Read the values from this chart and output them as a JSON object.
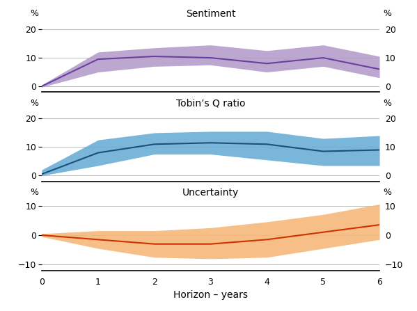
{
  "x": [
    0,
    1,
    2,
    3,
    4,
    5,
    6
  ],
  "sentiment_center": [
    0.0,
    9.5,
    10.5,
    10.0,
    8.0,
    10.0,
    6.0
  ],
  "sentiment_upper": [
    0.5,
    12.0,
    13.5,
    14.5,
    12.5,
    14.5,
    10.5
  ],
  "sentiment_lower": [
    -0.3,
    5.0,
    7.0,
    7.5,
    5.0,
    7.0,
    3.0
  ],
  "tobinq_center": [
    0.5,
    8.0,
    11.0,
    11.5,
    11.0,
    8.5,
    9.0
  ],
  "tobinq_upper": [
    2.0,
    12.5,
    15.0,
    15.5,
    15.5,
    13.0,
    14.0
  ],
  "tobinq_lower": [
    0.0,
    3.5,
    7.5,
    7.5,
    5.5,
    3.5,
    3.5
  ],
  "uncertainty_center": [
    0.0,
    -1.5,
    -3.0,
    -3.0,
    -1.5,
    1.0,
    3.5
  ],
  "uncertainty_upper": [
    0.5,
    1.5,
    1.5,
    2.5,
    4.5,
    7.0,
    10.5
  ],
  "uncertainty_lower": [
    -0.5,
    -4.5,
    -7.5,
    -8.0,
    -7.5,
    -4.5,
    -1.5
  ],
  "sentiment_color_line": "#6b3fa0",
  "sentiment_color_fill": "#b49eca",
  "tobinq_color_line": "#1e4f7a",
  "tobinq_color_fill": "#6aaed6",
  "uncertainty_color_line": "#cc3300",
  "uncertainty_color_fill": "#f5b87a",
  "title1": "Sentiment",
  "title2": "Tobin’s Q ratio",
  "title3": "Uncertainty",
  "xlabel": "Horizon – years",
  "ylim1": [
    -2,
    27
  ],
  "ylim2": [
    -2,
    27
  ],
  "ylim3": [
    -12,
    16
  ],
  "yticks1": [
    0,
    10,
    20
  ],
  "yticks2": [
    0,
    10,
    20
  ],
  "yticks3": [
    -10,
    0,
    10
  ],
  "xticks": [
    0,
    1,
    2,
    3,
    4,
    5,
    6
  ],
  "grid_color": "#bbbbbb",
  "label_color": "#000000",
  "pct_label": "%"
}
